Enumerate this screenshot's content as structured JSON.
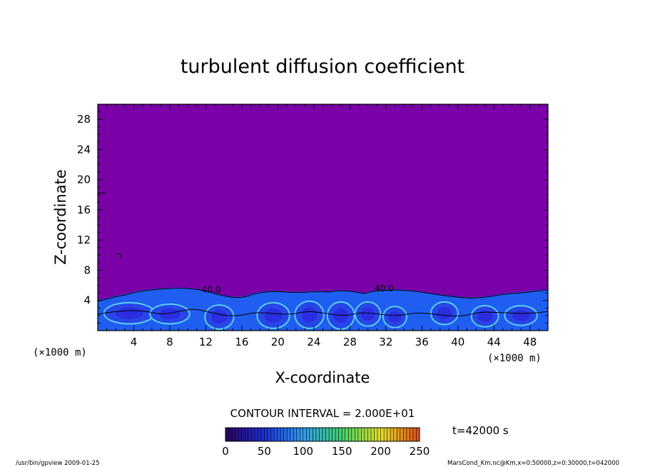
{
  "chart_data": {
    "type": "heatmap",
    "title": "turbulent diffusion coefficient",
    "xlabel": "X-coordinate",
    "ylabel": "Z-coordinate",
    "x_unit": "(×1000 m)",
    "y_unit": "(×1000 m)",
    "xlim": [
      0,
      50
    ],
    "ylim": [
      0,
      30
    ],
    "x_ticks": [
      4,
      8,
      12,
      16,
      20,
      24,
      28,
      32,
      36,
      40,
      44,
      48
    ],
    "y_ticks": [
      4,
      8,
      12,
      16,
      20,
      24,
      28
    ],
    "contour_interval": "CONTOUR INTERVAL = 2.000E+01",
    "contour_labels": [
      {
        "x": 12.6,
        "z": 5.0,
        "text": "40.0"
      },
      {
        "x": 31.8,
        "z": 5.2,
        "text": "40.0"
      }
    ],
    "colorbar": {
      "ticks": [
        0,
        50,
        100,
        150,
        200,
        250
      ],
      "range": [
        0,
        250
      ],
      "colors": [
        "#2a0060",
        "#1b2fd6",
        "#2e9cf0",
        "#3fd36a",
        "#e6e02a",
        "#e04a18"
      ]
    },
    "background_value_color": "#7a00a8",
    "time_label": "t=42000 s",
    "boundary_layer_top_km": 5.5
  },
  "footer": {
    "left": "/usr/bin/gpview  2009-01-25",
    "right": "MarsCond_Km.nc@Km,x=0:50000,z=0:30000,t=042000"
  }
}
